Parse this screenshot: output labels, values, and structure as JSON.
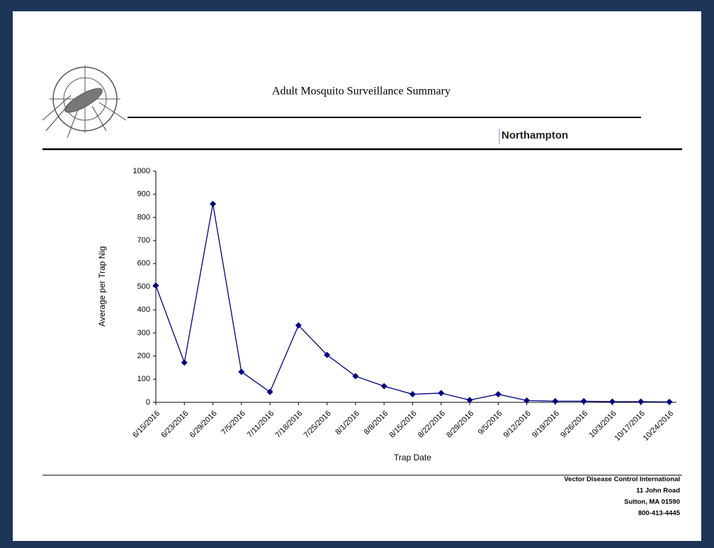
{
  "header": {
    "title": "Adult Mosquito Surveillance Summary",
    "location": "Northampton"
  },
  "chart_data": {
    "type": "line",
    "categories": [
      "6/15/2016",
      "6/23/2016",
      "6/29/2016",
      "7/5/2016",
      "7/11/2016",
      "7/18/2016",
      "7/25/2016",
      "8/1/2016",
      "8/8/2016",
      "8/15/2016",
      "8/22/2016",
      "8/29/2016",
      "9/5/2016",
      "9/12/2016",
      "9/19/2016",
      "9/26/2016",
      "10/3/2016",
      "10/17/2016",
      "10/24/2016"
    ],
    "values": [
      505,
      172,
      858,
      132,
      45,
      333,
      205,
      113,
      70,
      35,
      40,
      10,
      35,
      8,
      5,
      5,
      3,
      3,
      2
    ],
    "color": "#000080",
    "ylim": [
      0,
      1000
    ],
    "yticks": [
      0,
      100,
      200,
      300,
      400,
      500,
      600,
      700,
      800,
      900,
      1000
    ],
    "x_label": "Trap Date",
    "y_label": "Average per Trap Nig"
  },
  "footer": {
    "lines": [
      "Vector Disease Control International",
      "11 John Road",
      "Sutton, MA 01590",
      "800-413-4445"
    ]
  }
}
